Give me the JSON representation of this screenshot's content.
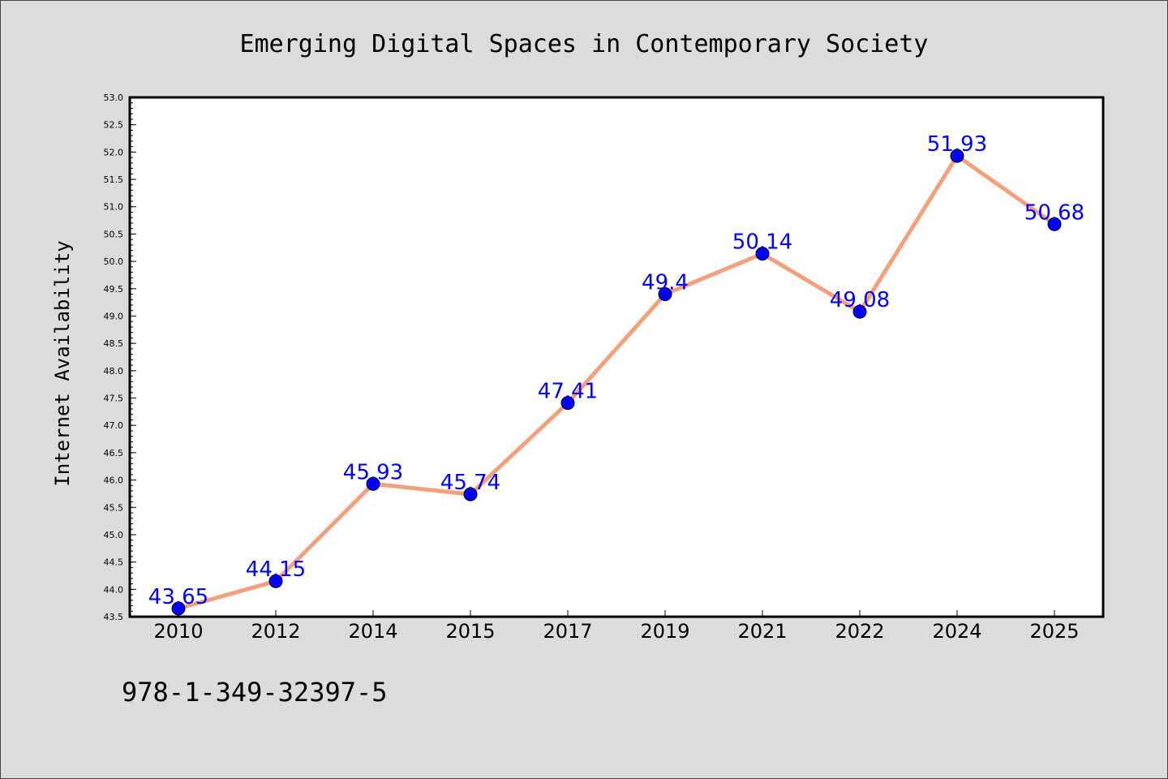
{
  "chart_data": {
    "type": "line",
    "title": "Emerging Digital Spaces in Contemporary Society",
    "xlabel": "",
    "ylabel": "Internet Availability",
    "categories": [
      "2010",
      "2012",
      "2014",
      "2015",
      "2017",
      "2019",
      "2021",
      "2022",
      "2024",
      "2025"
    ],
    "values": [
      43.65,
      44.15,
      45.93,
      45.74,
      47.41,
      49.4,
      50.14,
      49.08,
      51.93,
      50.68
    ],
    "data_labels": [
      "43.65",
      "44.15",
      "45.93",
      "45.74",
      "47.41",
      "49.4",
      "50.14",
      "49.08",
      "51.93",
      "50.68"
    ],
    "ylim": [
      43.5,
      53.0
    ],
    "yticks": [
      "43.5",
      "44.0",
      "44.5",
      "45.0",
      "45.5",
      "46.0",
      "46.5",
      "47.0",
      "47.5",
      "48.0",
      "48.5",
      "49.0",
      "49.5",
      "50.0",
      "50.5",
      "51.0",
      "51.5",
      "52.0",
      "52.5",
      "53.0"
    ],
    "grid": false,
    "legend": "none",
    "colors": {
      "line": "#f4a07c",
      "marker": "#0000ff",
      "labels": "#0000ff",
      "background": "#dcdcdc",
      "plot_background": "#ffffff"
    }
  },
  "footer": {
    "isbn": "978-1-349-32397-5"
  }
}
